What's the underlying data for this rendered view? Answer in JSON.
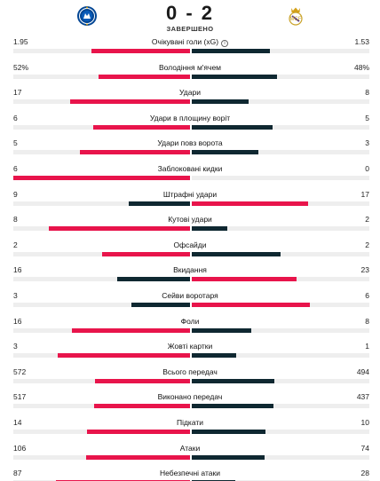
{
  "match": {
    "home_logo": "chelsea-crest-icon",
    "away_logo": "real-madrid-crest-icon",
    "score": "0 - 2",
    "status": "ЗАВЕРШЕНО"
  },
  "colors": {
    "winner": "#e8144b",
    "loser": "#0f2831",
    "track": "#eeeeee"
  },
  "stats": [
    {
      "label": "Очікувані голи (xG)",
      "home": "1.95",
      "away": "1.53",
      "info_icon": "info-icon"
    },
    {
      "label": "Володіння м'ячем",
      "home": "52%",
      "away": "48%"
    },
    {
      "label": "Удари",
      "home": "17",
      "away": "8"
    },
    {
      "label": "Удари в площину воріт",
      "home": "6",
      "away": "5"
    },
    {
      "label": "Удари повз ворота",
      "home": "5",
      "away": "3"
    },
    {
      "label": "Заблоковані кидки",
      "home": "6",
      "away": "0"
    },
    {
      "label": "Штрафні удари",
      "home": "9",
      "away": "17"
    },
    {
      "label": "Кутові удари",
      "home": "8",
      "away": "2"
    },
    {
      "label": "Офсайди",
      "home": "2",
      "away": "2"
    },
    {
      "label": "Вкидання",
      "home": "16",
      "away": "23"
    },
    {
      "label": "Сейви воротаря",
      "home": "3",
      "away": "6"
    },
    {
      "label": "Фоли",
      "home": "16",
      "away": "8"
    },
    {
      "label": "Жовті картки",
      "home": "3",
      "away": "1"
    },
    {
      "label": "Всього передач",
      "home": "572",
      "away": "494"
    },
    {
      "label": "Виконано передач",
      "home": "517",
      "away": "437"
    },
    {
      "label": "Підкати",
      "home": "14",
      "away": "10"
    },
    {
      "label": "Атаки",
      "home": "106",
      "away": "74"
    },
    {
      "label": "Небезпечні атаки",
      "home": "87",
      "away": "28"
    }
  ]
}
